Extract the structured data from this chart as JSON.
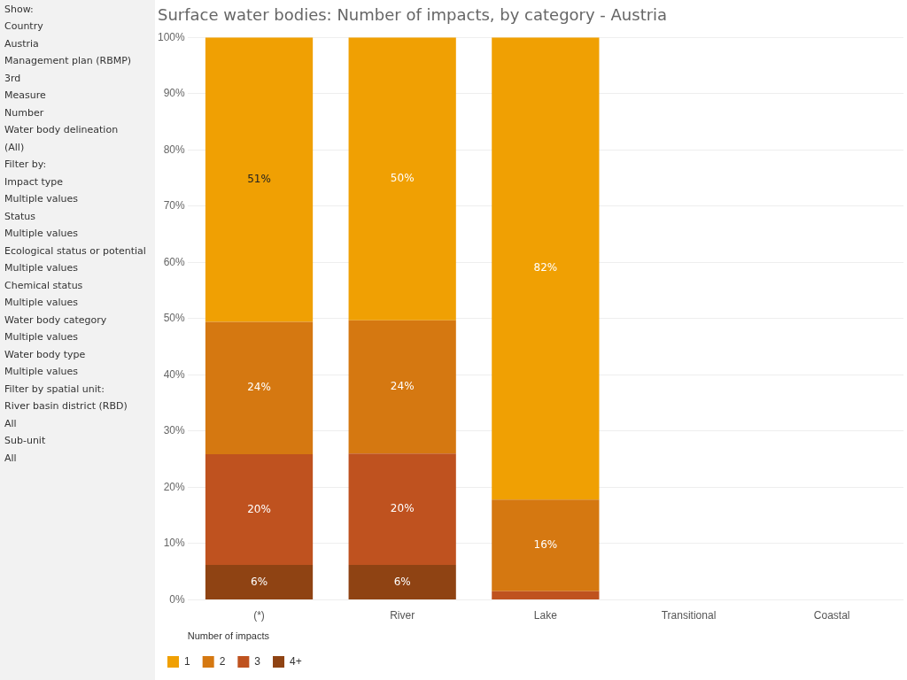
{
  "chart_data": [
    {
      "type": "other",
      "annotations": [
        "Show:",
        "Country",
        "Austria",
        "Management plan (RBMP)",
        "3rd",
        "Measure",
        "Number",
        "Water body delineation",
        "(All)",
        "Filter by:",
        "Impact type",
        "Multiple values",
        "Status",
        "Multiple values",
        "Ecological status or potential",
        "Multiple values",
        "Chemical status",
        "Multiple values",
        "Water body category",
        "Multiple values",
        "Water body type",
        "Multiple values",
        "Filter by spatial unit:",
        "River basin district (RBD)",
        "All",
        "Sub-unit",
        "All"
      ]
    },
    {
      "type": "bar",
      "title": "Surface water bodies: Number of impacts, by category - Austria",
      "stacked": true,
      "categories": [
        "(*)",
        "River",
        "Lake",
        "Transitional",
        "Coastal"
      ],
      "series": [
        {
          "name": "4+",
          "color": "#8f4313",
          "values": [
            6.2,
            6.2,
            0,
            null,
            null
          ],
          "value_labels": [
            "6%",
            "6%",
            null,
            null,
            null
          ]
        },
        {
          "name": "3",
          "color": "#bf521f",
          "values": [
            19.7,
            19.8,
            1.5,
            null,
            null
          ],
          "value_labels": [
            "20%",
            "20%",
            null,
            null,
            null
          ]
        },
        {
          "name": "2",
          "color": "#d57811",
          "values": [
            23.5,
            23.7,
            16.3,
            null,
            null
          ],
          "value_labels": [
            "24%",
            "24%",
            "16%",
            null,
            null
          ]
        },
        {
          "name": "1",
          "color": "#f0a003",
          "values": [
            50.6,
            50.3,
            82.2,
            null,
            null
          ],
          "value_labels": [
            "51%",
            "50%",
            "82%",
            null,
            null
          ]
        }
      ],
      "ylim": [
        0,
        100
      ],
      "yticks": [
        {
          "value": 0,
          "label": "0%"
        },
        {
          "value": 10,
          "label": "10%"
        },
        {
          "value": 20,
          "label": "20%"
        },
        {
          "value": 30,
          "label": "30%"
        },
        {
          "value": 40,
          "label": "40%"
        },
        {
          "value": 50,
          "label": "50%"
        },
        {
          "value": 60,
          "label": "60%"
        },
        {
          "value": 70,
          "label": "70%"
        },
        {
          "value": 80,
          "label": "80%"
        },
        {
          "value": 90,
          "label": "90%"
        },
        {
          "value": 100,
          "label": "100%"
        }
      ],
      "grid": "y",
      "legend": "bottom",
      "legend_title": "Number of impacts"
    }
  ]
}
